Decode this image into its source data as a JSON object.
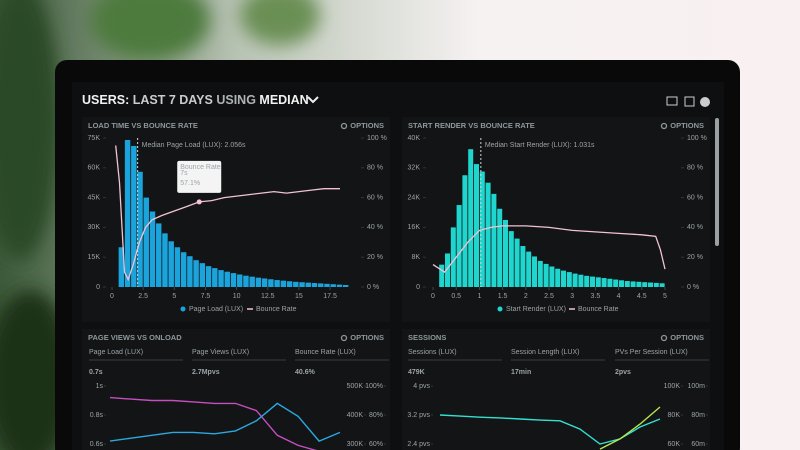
{
  "header": {
    "title": {
      "users": "USERS:",
      "range": "LAST 7 DAYS",
      "using": "USING",
      "stat": "MEDIAN"
    }
  },
  "chart_data": [
    {
      "type": "histogram",
      "title": "LOAD TIME VS BOUNCE RATE",
      "options": "OPTIONS",
      "median": {
        "value": 2.056,
        "label": "Median Page Load (LUX): 2.056s"
      },
      "tooltip": {
        "title": "Bounce Rate",
        "x": {
          "value": 7,
          "label": "7s"
        },
        "value": {
          "value": 57.1,
          "label": "57.1%"
        }
      },
      "bins": [
        0.5,
        1,
        1.5,
        2,
        2.5,
        3,
        3.5,
        4,
        4.5,
        5,
        5.5,
        6,
        6.5,
        7,
        7.5,
        8,
        8.5,
        9,
        9.5,
        10,
        10.5,
        11,
        11.5,
        12,
        12.5,
        13,
        13.5,
        14,
        14.5,
        15,
        15.5,
        16,
        16.5,
        17,
        17.5,
        18,
        18.5,
        19
      ],
      "series": [
        {
          "name": "Page Load (LUX)",
          "color": "#1ba3dc",
          "values": [
            20000,
            74000,
            71000,
            58000,
            45000,
            38000,
            32000,
            27000,
            23000,
            20000,
            17500,
            15500,
            13500,
            12000,
            10500,
            9500,
            8500,
            7700,
            7000,
            6300,
            5700,
            5200,
            4700,
            4300,
            3900,
            3500,
            3200,
            2900,
            2600,
            2400,
            2200,
            2000,
            1800,
            1600,
            1400,
            1200,
            1000
          ]
        },
        {
          "name": "Bounce Rate",
          "color": "#f2c3d2",
          "axis": "y2",
          "x": [
            0.3,
            0.6,
            1,
            1.3,
            1.7,
            2.2,
            2.7,
            3.2,
            4,
            5,
            6,
            7,
            8,
            9,
            10,
            11,
            12,
            13,
            14,
            15,
            16,
            17,
            18.3
          ],
          "values": [
            95,
            70,
            10,
            5,
            15,
            30,
            40,
            45,
            48,
            51,
            54,
            57.1,
            58,
            60,
            61,
            62,
            63,
            64,
            63,
            64,
            65,
            66,
            66
          ]
        }
      ],
      "xlim": [
        0,
        19.5
      ],
      "xticks": [
        0,
        2.5,
        5,
        7.5,
        10,
        12.5,
        15,
        17.5
      ],
      "ylim": [
        0,
        75000
      ],
      "yticks": [
        0,
        {
          "value": 15000,
          "label": "15K"
        },
        {
          "value": 30000,
          "label": "30K"
        },
        {
          "value": 45000,
          "label": "45K"
        },
        {
          "value": 60000,
          "label": "60K"
        },
        {
          "value": 75000,
          "label": "75K"
        }
      ],
      "y2lim": [
        0,
        100
      ],
      "y2ticks": [
        {
          "value": 0,
          "label": "0 %"
        },
        {
          "value": 20,
          "label": "20 %"
        },
        {
          "value": 40,
          "label": "40 %"
        },
        {
          "value": 60,
          "label": "60 %"
        },
        {
          "value": 80,
          "label": "80 %"
        },
        {
          "value": 100,
          "label": "100 %"
        }
      ]
    },
    {
      "type": "histogram",
      "title": "START RENDER VS BOUNCE RATE",
      "options": "OPTIONS",
      "median": {
        "value": 1.031,
        "label": "Median Start Render (LUX): 1.031s"
      },
      "bins": [
        0.125,
        0.25,
        0.375,
        0.5,
        0.625,
        0.75,
        0.875,
        1,
        1.125,
        1.25,
        1.375,
        1.5,
        1.625,
        1.75,
        1.875,
        2,
        2.125,
        2.25,
        2.375,
        2.5,
        2.625,
        2.75,
        2.875,
        3,
        3.125,
        3.25,
        3.375,
        3.5,
        3.625,
        3.75,
        3.875,
        4,
        4.125,
        4.25,
        4.375,
        4.5,
        4.625,
        4.75,
        4.875,
        5
      ],
      "series": [
        {
          "name": "Start Render (LUX)",
          "color": "#1fd6cf",
          "values": [
            6000,
            9000,
            16000,
            22000,
            30000,
            37000,
            33000,
            31000,
            28000,
            25000,
            21000,
            18000,
            15000,
            13000,
            11000,
            9500,
            8200,
            7000,
            6200,
            5500,
            4900,
            4400,
            4000,
            3600,
            3300,
            3000,
            2800,
            2600,
            2400,
            2200,
            2000,
            1800,
            1600,
            1500,
            1400,
            1300,
            1200,
            1100,
            1000
          ]
        },
        {
          "name": "Bounce Rate",
          "color": "#f2c3d2",
          "axis": "y2",
          "x": [
            0,
            0.25,
            0.5,
            0.75,
            1,
            1.25,
            1.5,
            2,
            2.5,
            3,
            3.5,
            4,
            4.5,
            4.8,
            4.9,
            5
          ],
          "values": [
            15,
            10,
            20,
            30,
            38,
            40,
            41,
            41,
            40,
            38,
            37,
            36,
            35,
            34,
            25,
            12
          ]
        }
      ],
      "xlim": [
        0,
        5
      ],
      "xticks": [
        0,
        0.5,
        1,
        1.5,
        2,
        2.5,
        3,
        3.5,
        4,
        4.5,
        5
      ],
      "ylim": [
        0,
        40000
      ],
      "yticks": [
        0,
        {
          "value": 8000,
          "label": "8K"
        },
        {
          "value": 16000,
          "label": "16K"
        },
        {
          "value": 24000,
          "label": "24K"
        },
        {
          "value": 32000,
          "label": "32K"
        },
        {
          "value": 40000,
          "label": "40K"
        }
      ],
      "y2lim": [
        0,
        100
      ],
      "y2ticks": [
        {
          "value": 0,
          "label": "0 %"
        },
        {
          "value": 20,
          "label": "20 %"
        },
        {
          "value": 40,
          "label": "40 %"
        },
        {
          "value": 60,
          "label": "60 %"
        },
        {
          "value": 80,
          "label": "80 %"
        },
        {
          "value": 100,
          "label": "100 %"
        }
      ]
    },
    {
      "type": "line",
      "title": "PAGE VIEWS VS ONLOAD",
      "options": "OPTIONS",
      "metrics": [
        {
          "label": "Page Load (LUX)",
          "value": "0.7s",
          "color": "#2aa8e0"
        },
        {
          "label": "Page Views (LUX)",
          "value": "2.7Mpvs",
          "color": "#c44fbf"
        },
        {
          "label": "Bounce Rate (LUX)",
          "value": "40.6%",
          "color": "#f3a9bd"
        }
      ],
      "ylim": [
        0.6,
        1
      ],
      "yticks": [
        {
          "value": 1,
          "label": "1s"
        },
        {
          "value": 0.8,
          "label": "0.8s"
        },
        {
          "value": 0.6,
          "label": "0.6s"
        }
      ],
      "y2lim": [
        300000,
        500000
      ],
      "y2ticks": [
        {
          "value": 500000,
          "label": "500K"
        },
        {
          "value": 400000,
          "label": "400K"
        },
        {
          "value": 300000,
          "label": "300K"
        }
      ],
      "y3lim": [
        60,
        100
      ],
      "y3ticks": [
        {
          "value": 100,
          "label": "100%"
        },
        {
          "value": 80,
          "label": "80%"
        },
        {
          "value": 60,
          "label": "60%"
        }
      ],
      "series": [
        {
          "color": "#c44fbf",
          "values": [
            0.92,
            0.91,
            0.9,
            0.9,
            0.89,
            0.88,
            0.88,
            0.83,
            0.66,
            0.59,
            0.55,
            0.54
          ]
        },
        {
          "color": "#2aa8e0",
          "values": [
            0.62,
            0.64,
            0.66,
            0.68,
            0.68,
            0.67,
            0.69,
            0.76,
            0.88,
            0.79,
            0.62,
            0.68
          ]
        }
      ]
    },
    {
      "type": "line",
      "title": "SESSIONS",
      "options": "OPTIONS",
      "metrics": [
        {
          "label": "Sessions (LUX)",
          "value": "479K",
          "color": "#33e0d2"
        },
        {
          "label": "Session Length (LUX)",
          "value": "17min",
          "color": "#b9e64c"
        },
        {
          "label": "PVs Per Session (LUX)",
          "value": "2pvs",
          "color": "#3ee07a"
        }
      ],
      "ylim": [
        2.4,
        4
      ],
      "yticks": [
        {
          "value": 4,
          "label": "4 pvs"
        },
        {
          "value": 3.2,
          "label": "3.2 pvs"
        },
        {
          "value": 2.4,
          "label": "2.4 pvs"
        }
      ],
      "y2lim": [
        60000,
        100000
      ],
      "y2ticks": [
        {
          "value": 100000,
          "label": "100K"
        },
        {
          "value": 80000,
          "label": "80K"
        },
        {
          "value": 60000,
          "label": "60K"
        }
      ],
      "y3lim": [
        60,
        100
      ],
      "y3ticks": [
        {
          "value": 100,
          "label": "100m"
        },
        {
          "value": 80,
          "label": "80m"
        },
        {
          "value": 60,
          "label": "60m"
        }
      ],
      "series": [
        {
          "color": "#33e0d2",
          "values": [
            3.2,
            3.17,
            3.14,
            3.12,
            3.09,
            3.06,
            3.04,
            2.81,
            2.4,
            2.54,
            2.87,
            3.09
          ]
        },
        {
          "color": "#b9e64c",
          "values": [
            null,
            null,
            null,
            null,
            null,
            null,
            null,
            null,
            2.26,
            2.54,
            2.95,
            3.42
          ]
        }
      ]
    }
  ]
}
